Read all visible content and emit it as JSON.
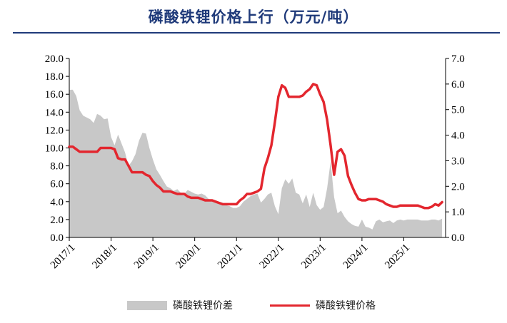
{
  "title": "磷酸铁锂价格上行（万元/吨）",
  "colors": {
    "title": "#1f3a7a",
    "price_line": "#e3262e",
    "spread_area": "#c8c8c8"
  },
  "chart_data": {
    "type": "line",
    "title": "磷酸铁锂价格上行（万元/吨）",
    "legend_position": "bottom",
    "grid": false,
    "x_ticks": [
      "2017/1",
      "2018/1",
      "2019/1",
      "2020/1",
      "2021/1",
      "2022/1",
      "2023/1",
      "2024/1",
      "2025/1"
    ],
    "xlim": [
      "2017/1",
      "2025/12"
    ],
    "y_left": {
      "lim": [
        0,
        20
      ],
      "ticks": [
        "0.0",
        "2.0",
        "4.0",
        "6.0",
        "8.0",
        "10.0",
        "12.0",
        "14.0",
        "16.0",
        "18.0",
        "20.0"
      ]
    },
    "y_right": {
      "lim": [
        0,
        7
      ],
      "ticks": [
        "0.0",
        "1.0",
        "2.0",
        "3.0",
        "4.0",
        "5.0",
        "6.0",
        "7.0"
      ]
    },
    "series": [
      {
        "name": "磷酸铁锂价差",
        "type": "area",
        "axis": "left",
        "points": [
          [
            "2017/1",
            16.5
          ],
          [
            "2017/2",
            16.5
          ],
          [
            "2017/3",
            15.8
          ],
          [
            "2017/4",
            14.2
          ],
          [
            "2017/5",
            13.6
          ],
          [
            "2017/6",
            13.4
          ],
          [
            "2017/7",
            13.2
          ],
          [
            "2017/8",
            12.8
          ],
          [
            "2017/9",
            13.8
          ],
          [
            "2017/10",
            13.6
          ],
          [
            "2017/11",
            13.2
          ],
          [
            "2017/12",
            13.3
          ],
          [
            "2018/1",
            11.2
          ],
          [
            "2018/2",
            10.3
          ],
          [
            "2018/3",
            11.5
          ],
          [
            "2018/4",
            10.5
          ],
          [
            "2018/5",
            9.5
          ],
          [
            "2018/6",
            8.0
          ],
          [
            "2018/7",
            8.5
          ],
          [
            "2018/8",
            9.3
          ],
          [
            "2018/9",
            10.8
          ],
          [
            "2018/10",
            11.7
          ],
          [
            "2018/11",
            11.6
          ],
          [
            "2018/12",
            10.0
          ],
          [
            "2019/1",
            8.7
          ],
          [
            "2019/2",
            7.6
          ],
          [
            "2019/3",
            7.0
          ],
          [
            "2019/4",
            6.3
          ],
          [
            "2019/5",
            5.7
          ],
          [
            "2019/6",
            5.5
          ],
          [
            "2019/7",
            5.2
          ],
          [
            "2019/8",
            5.4
          ],
          [
            "2019/9",
            5.0
          ],
          [
            "2019/10",
            4.9
          ],
          [
            "2019/11",
            5.3
          ],
          [
            "2019/12",
            5.1
          ],
          [
            "2020/1",
            4.9
          ],
          [
            "2020/2",
            4.8
          ],
          [
            "2020/3",
            4.9
          ],
          [
            "2020/4",
            4.7
          ],
          [
            "2020/5",
            4.3
          ],
          [
            "2020/6",
            4.2
          ],
          [
            "2020/7",
            4.0
          ],
          [
            "2020/8",
            4.0
          ],
          [
            "2020/9",
            3.9
          ],
          [
            "2020/10",
            3.6
          ],
          [
            "2020/11",
            3.5
          ],
          [
            "2020/12",
            3.3
          ],
          [
            "2021/1",
            3.3
          ],
          [
            "2021/2",
            3.5
          ],
          [
            "2021/3",
            4.0
          ],
          [
            "2021/4",
            4.3
          ],
          [
            "2021/5",
            4.6
          ],
          [
            "2021/6",
            4.8
          ],
          [
            "2021/7",
            4.9
          ],
          [
            "2021/8",
            3.9
          ],
          [
            "2021/9",
            4.3
          ],
          [
            "2021/10",
            4.8
          ],
          [
            "2021/11",
            5.0
          ],
          [
            "2021/12",
            3.5
          ],
          [
            "2022/1",
            2.6
          ],
          [
            "2022/2",
            5.5
          ],
          [
            "2022/3",
            6.5
          ],
          [
            "2022/4",
            6.0
          ],
          [
            "2022/5",
            6.6
          ],
          [
            "2022/6",
            5.0
          ],
          [
            "2022/7",
            4.8
          ],
          [
            "2022/8",
            3.8
          ],
          [
            "2022/9",
            4.8
          ],
          [
            "2022/10",
            3.4
          ],
          [
            "2022/11",
            5.0
          ],
          [
            "2022/12",
            3.6
          ],
          [
            "2023/1",
            3.1
          ],
          [
            "2023/2",
            3.4
          ],
          [
            "2023/3",
            5.5
          ],
          [
            "2023/4",
            8.5
          ],
          [
            "2023/5",
            4.5
          ],
          [
            "2023/6",
            2.7
          ],
          [
            "2023/7",
            3.0
          ],
          [
            "2023/8",
            2.3
          ],
          [
            "2023/9",
            1.8
          ],
          [
            "2023/10",
            1.5
          ],
          [
            "2023/11",
            1.3
          ],
          [
            "2023/12",
            1.2
          ],
          [
            "2024/1",
            2.0
          ],
          [
            "2024/2",
            1.2
          ],
          [
            "2024/3",
            1.1
          ],
          [
            "2024/4",
            0.9
          ],
          [
            "2024/5",
            1.8
          ],
          [
            "2024/6",
            2.0
          ],
          [
            "2024/7",
            1.7
          ],
          [
            "2024/8",
            1.8
          ],
          [
            "2024/9",
            1.9
          ],
          [
            "2024/10",
            1.6
          ],
          [
            "2024/11",
            1.9
          ],
          [
            "2024/12",
            2.0
          ],
          [
            "2025/1",
            1.9
          ],
          [
            "2025/2",
            2.0
          ],
          [
            "2025/3",
            2.0
          ],
          [
            "2025/4",
            2.0
          ],
          [
            "2025/5",
            2.0
          ],
          [
            "2025/6",
            1.9
          ],
          [
            "2025/7",
            1.9
          ],
          [
            "2025/8",
            1.9
          ],
          [
            "2025/9",
            2.0
          ],
          [
            "2025/10",
            2.0
          ],
          [
            "2025/11",
            1.9
          ],
          [
            "2025/12",
            2.1
          ]
        ]
      },
      {
        "name": "磷酸铁锂价格",
        "type": "line",
        "axis": "right",
        "points": [
          [
            "2017/1",
            3.55
          ],
          [
            "2017/2",
            3.55
          ],
          [
            "2017/3",
            3.45
          ],
          [
            "2017/4",
            3.35
          ],
          [
            "2017/5",
            3.35
          ],
          [
            "2017/6",
            3.35
          ],
          [
            "2017/7",
            3.35
          ],
          [
            "2017/8",
            3.35
          ],
          [
            "2017/9",
            3.35
          ],
          [
            "2017/10",
            3.5
          ],
          [
            "2017/11",
            3.5
          ],
          [
            "2017/12",
            3.5
          ],
          [
            "2018/1",
            3.5
          ],
          [
            "2018/2",
            3.45
          ],
          [
            "2018/3",
            3.1
          ],
          [
            "2018/4",
            3.05
          ],
          [
            "2018/5",
            3.05
          ],
          [
            "2018/6",
            2.8
          ],
          [
            "2018/7",
            2.55
          ],
          [
            "2018/8",
            2.55
          ],
          [
            "2018/9",
            2.55
          ],
          [
            "2018/10",
            2.55
          ],
          [
            "2018/11",
            2.45
          ],
          [
            "2018/12",
            2.4
          ],
          [
            "2019/1",
            2.2
          ],
          [
            "2019/2",
            2.05
          ],
          [
            "2019/3",
            1.95
          ],
          [
            "2019/4",
            1.8
          ],
          [
            "2019/5",
            1.8
          ],
          [
            "2019/6",
            1.8
          ],
          [
            "2019/7",
            1.75
          ],
          [
            "2019/8",
            1.7
          ],
          [
            "2019/9",
            1.7
          ],
          [
            "2019/10",
            1.7
          ],
          [
            "2019/11",
            1.6
          ],
          [
            "2019/12",
            1.55
          ],
          [
            "2020/1",
            1.55
          ],
          [
            "2020/2",
            1.55
          ],
          [
            "2020/3",
            1.5
          ],
          [
            "2020/4",
            1.45
          ],
          [
            "2020/5",
            1.45
          ],
          [
            "2020/6",
            1.45
          ],
          [
            "2020/7",
            1.4
          ],
          [
            "2020/8",
            1.35
          ],
          [
            "2020/9",
            1.3
          ],
          [
            "2020/10",
            1.3
          ],
          [
            "2020/11",
            1.3
          ],
          [
            "2020/12",
            1.3
          ],
          [
            "2021/1",
            1.3
          ],
          [
            "2021/2",
            1.45
          ],
          [
            "2021/3",
            1.55
          ],
          [
            "2021/4",
            1.7
          ],
          [
            "2021/5",
            1.7
          ],
          [
            "2021/6",
            1.75
          ],
          [
            "2021/7",
            1.8
          ],
          [
            "2021/8",
            1.9
          ],
          [
            "2021/9",
            2.7
          ],
          [
            "2021/10",
            3.1
          ],
          [
            "2021/11",
            3.6
          ],
          [
            "2021/12",
            4.5
          ],
          [
            "2022/1",
            5.5
          ],
          [
            "2022/2",
            5.95
          ],
          [
            "2022/3",
            5.85
          ],
          [
            "2022/4",
            5.5
          ],
          [
            "2022/5",
            5.5
          ],
          [
            "2022/6",
            5.5
          ],
          [
            "2022/7",
            5.5
          ],
          [
            "2022/8",
            5.55
          ],
          [
            "2022/9",
            5.7
          ],
          [
            "2022/10",
            5.8
          ],
          [
            "2022/11",
            6.0
          ],
          [
            "2022/12",
            5.95
          ],
          [
            "2023/1",
            5.6
          ],
          [
            "2023/2",
            5.3
          ],
          [
            "2023/3",
            4.6
          ],
          [
            "2023/4",
            3.6
          ],
          [
            "2023/5",
            2.45
          ],
          [
            "2023/6",
            3.35
          ],
          [
            "2023/7",
            3.45
          ],
          [
            "2023/8",
            3.2
          ],
          [
            "2023/9",
            2.4
          ],
          [
            "2023/10",
            2.05
          ],
          [
            "2023/11",
            1.75
          ],
          [
            "2023/12",
            1.5
          ],
          [
            "2024/1",
            1.45
          ],
          [
            "2024/2",
            1.45
          ],
          [
            "2024/3",
            1.5
          ],
          [
            "2024/4",
            1.5
          ],
          [
            "2024/5",
            1.5
          ],
          [
            "2024/6",
            1.45
          ],
          [
            "2024/7",
            1.4
          ],
          [
            "2024/8",
            1.3
          ],
          [
            "2024/9",
            1.25
          ],
          [
            "2024/10",
            1.2
          ],
          [
            "2024/11",
            1.2
          ],
          [
            "2024/12",
            1.25
          ],
          [
            "2025/1",
            1.25
          ],
          [
            "2025/2",
            1.25
          ],
          [
            "2025/3",
            1.25
          ],
          [
            "2025/4",
            1.25
          ],
          [
            "2025/5",
            1.25
          ],
          [
            "2025/6",
            1.2
          ],
          [
            "2025/7",
            1.15
          ],
          [
            "2025/8",
            1.15
          ],
          [
            "2025/9",
            1.2
          ],
          [
            "2025/10",
            1.3
          ],
          [
            "2025/11",
            1.25
          ],
          [
            "2025/12",
            1.38
          ]
        ]
      }
    ]
  },
  "legend": {
    "area_label": "磷酸铁锂价差",
    "line_label": "磷酸铁锂价格"
  }
}
